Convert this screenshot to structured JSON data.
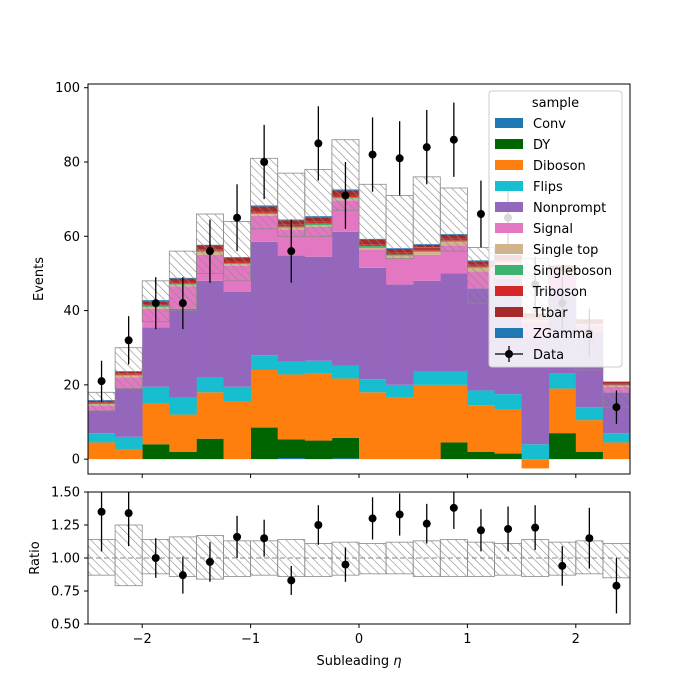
{
  "chart_data": [
    {
      "type": "bar",
      "panel": "main",
      "stacked": true,
      "ylabel": "Events",
      "xlim": [
        -2.5,
        2.5
      ],
      "ylim": [
        -4,
        101
      ],
      "yticks": [
        "0",
        "20",
        "40",
        "60",
        "80",
        "100"
      ],
      "bin_edges": [
        -2.5,
        -2.25,
        -2.0,
        -1.75,
        -1.5,
        -1.25,
        -1.0,
        -0.75,
        -0.5,
        -0.25,
        0.0,
        0.25,
        0.5,
        0.75,
        1.0,
        1.25,
        1.5,
        1.75,
        2.0,
        2.25,
        2.5
      ],
      "series": [
        {
          "name": "Conv",
          "color": "#1f77b4",
          "values": [
            0,
            0,
            0,
            0,
            0,
            0,
            0,
            0.3,
            0,
            0.2,
            0,
            0,
            0,
            0,
            0,
            0,
            0,
            0,
            0,
            0
          ]
        },
        {
          "name": "DY",
          "color": "#006400",
          "values": [
            0,
            0,
            4,
            2,
            5.5,
            0,
            8.5,
            5,
            5,
            5.5,
            0,
            0,
            0,
            4.5,
            2,
            1.5,
            0,
            7,
            2,
            0
          ]
        },
        {
          "name": "Diboson",
          "color": "#ff7f0e",
          "values": [
            4.5,
            2.5,
            11,
            10,
            12.5,
            15.5,
            15.5,
            17.5,
            18,
            16,
            18,
            16.5,
            20,
            15.5,
            12.5,
            12,
            -2.5,
            12,
            8.5,
            4.5
          ]
        },
        {
          "name": "Flips",
          "color": "#17becf",
          "values": [
            2.5,
            3.5,
            4.5,
            4.5,
            4,
            4,
            4,
            3.5,
            3.5,
            3.5,
            3.5,
            3.5,
            3.5,
            3.5,
            4,
            4,
            4,
            4,
            3.5,
            2.5
          ]
        },
        {
          "name": "Nonprompt",
          "color": "#9467bd",
          "values": [
            6,
            13,
            16,
            24,
            26,
            25.5,
            30.5,
            28.5,
            28,
            36,
            30,
            27,
            24.5,
            26.5,
            27.5,
            31,
            29,
            23,
            20,
            11
          ]
        },
        {
          "name": "Signal",
          "color": "#e377c2",
          "values": [
            1.5,
            3,
            5,
            6,
            7,
            7,
            7,
            7,
            8,
            8.5,
            5,
            7,
            7,
            7.5,
            4.5,
            4,
            4,
            4,
            2,
            1.5
          ]
        },
        {
          "name": "Single top",
          "color": "#d2b48c",
          "values": [
            0.3,
            0.5,
            0.5,
            0.5,
            0.8,
            0.5,
            0.5,
            0.5,
            0.5,
            0.5,
            0.6,
            0.8,
            0.8,
            1.0,
            1.0,
            0.6,
            0.5,
            0.5,
            0.3,
            0.3
          ]
        },
        {
          "name": "Singleboson",
          "color": "#3cb371",
          "values": [
            0.2,
            0.2,
            0.3,
            0.3,
            0.3,
            0.3,
            0.3,
            0.3,
            0.4,
            0.3,
            0.3,
            0.3,
            0.3,
            0.3,
            0.3,
            0.3,
            0.3,
            0.3,
            0.2,
            0.2
          ]
        },
        {
          "name": "Triboson",
          "color": "#d62728",
          "values": [
            0.3,
            0.3,
            0.3,
            0.4,
            0.4,
            0.4,
            0.5,
            0.5,
            0.5,
            0.5,
            0.5,
            0.5,
            0.5,
            0.5,
            0.5,
            0.5,
            0.4,
            0.4,
            0.3,
            0.3
          ]
        },
        {
          "name": "Ttbar",
          "color": "#a52a2a",
          "values": [
            0.4,
            0.5,
            0.9,
            0.9,
            1.0,
            1.0,
            1.2,
            1.2,
            1.2,
            1.3,
            1.2,
            1.0,
            1.1,
            1.1,
            1.0,
            0.9,
            0.9,
            0.8,
            0.7,
            0.5
          ]
        },
        {
          "name": "ZGamma",
          "color": "#1f77b4",
          "values": [
            0.2,
            0.2,
            0.3,
            0.2,
            0.2,
            0.2,
            0.3,
            0.2,
            0.3,
            0.3,
            0.2,
            0.2,
            0.2,
            0.2,
            0.2,
            0.2,
            0.2,
            0.2,
            0.2,
            0.1
          ]
        }
      ],
      "uncertainty_band": {
        "up": [
          18,
          30,
          48,
          56,
          66,
          64,
          81,
          77,
          78,
          86,
          74,
          71,
          76,
          73,
          57,
          52,
          54,
          42,
          34,
          20
        ],
        "down": [
          13,
          19,
          37,
          40,
          50,
          48,
          62,
          60,
          60,
          67,
          57,
          54,
          57,
          56,
          42,
          38,
          38,
          31,
          24,
          14
        ]
      },
      "data_points": {
        "name": "Data",
        "x": [
          -2.375,
          -2.125,
          -1.875,
          -1.625,
          -1.375,
          -1.125,
          -0.875,
          -0.625,
          -0.375,
          -0.125,
          0.125,
          0.375,
          0.625,
          0.875,
          1.125,
          1.375,
          1.625,
          1.875,
          2.125,
          2.375
        ],
        "y": [
          21,
          32,
          42,
          42,
          56,
          65,
          80,
          56,
          85,
          71,
          82,
          81,
          84,
          86,
          66,
          65,
          47,
          42,
          34,
          14
        ],
        "yerr": [
          5.5,
          6.5,
          7,
          7,
          8.5,
          9,
          10,
          8.5,
          10,
          9,
          10,
          10,
          10,
          10,
          9,
          9,
          7.5,
          7,
          6.5,
          4.5
        ]
      },
      "legend": {
        "title": "sample",
        "placement": "top-right"
      }
    },
    {
      "type": "scatter",
      "panel": "ratio",
      "xlabel": "Subleading η",
      "ylabel": "Ratio",
      "xlim": [
        -2.5,
        2.5
      ],
      "ylim": [
        0.5,
        1.5
      ],
      "xticks": [
        "−2",
        "−1",
        "0",
        "1",
        "2"
      ],
      "yticks": [
        "0.50",
        "0.75",
        "1.00",
        "1.25",
        "1.50"
      ],
      "reference_line": 1.0,
      "x": [
        -2.375,
        -2.125,
        -1.875,
        -1.625,
        -1.375,
        -1.125,
        -0.875,
        -0.625,
        -0.375,
        -0.125,
        0.125,
        0.375,
        0.625,
        0.875,
        1.125,
        1.375,
        1.625,
        1.875,
        2.125,
        2.375
      ],
      "y": [
        1.35,
        1.34,
        1.0,
        0.87,
        0.97,
        1.16,
        1.15,
        0.83,
        1.25,
        0.95,
        1.3,
        1.33,
        1.26,
        1.38,
        1.21,
        1.22,
        1.23,
        0.94,
        1.15,
        0.79
      ],
      "yerr": [
        0.3,
        0.25,
        0.15,
        0.14,
        0.15,
        0.16,
        0.14,
        0.11,
        0.15,
        0.13,
        0.16,
        0.16,
        0.15,
        0.16,
        0.16,
        0.17,
        0.17,
        0.15,
        0.23,
        0.21
      ],
      "band_up": [
        1.14,
        1.25,
        1.14,
        1.16,
        1.17,
        1.13,
        1.13,
        1.14,
        1.11,
        1.12,
        1.11,
        1.12,
        1.13,
        1.14,
        1.12,
        1.11,
        1.14,
        1.12,
        1.13,
        1.11
      ],
      "band_down": [
        0.87,
        0.79,
        0.88,
        0.86,
        0.84,
        0.86,
        0.87,
        0.86,
        0.86,
        0.87,
        0.88,
        0.88,
        0.86,
        0.86,
        0.86,
        0.87,
        0.86,
        0.87,
        0.88,
        0.85
      ]
    }
  ]
}
